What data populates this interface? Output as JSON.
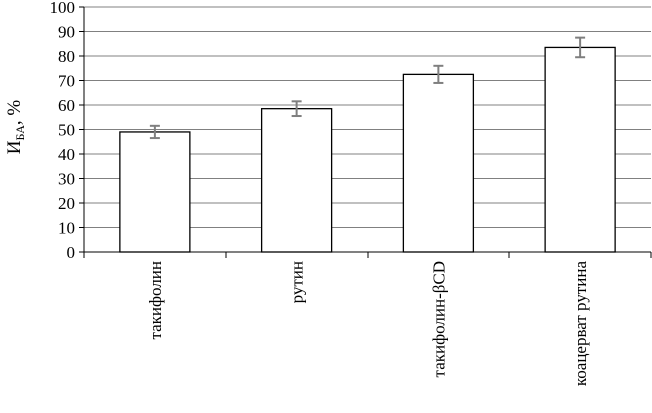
{
  "chart_data": {
    "type": "bar",
    "title": "",
    "xlabel": "",
    "ylabel": "И",
    "ylabel_subscript": "БА",
    "ylabel_suffix": ", %",
    "categories": [
      "такифолин",
      "рутин",
      "такифолин-βCD",
      "коацерват рутина"
    ],
    "values": [
      49,
      58.5,
      72.5,
      83.5
    ],
    "error": [
      2.5,
      3,
      3.5,
      4
    ],
    "ylim": [
      0,
      100
    ],
    "yticks": [
      0,
      10,
      20,
      30,
      40,
      50,
      60,
      70,
      80,
      90,
      100
    ],
    "grid": true,
    "legend": "none",
    "colors": {
      "bar_fill": "#ffffff",
      "bar_stroke": "#000000",
      "grid": "#808080",
      "axis": "#000000",
      "error_bar": "#7f7f7f"
    }
  }
}
